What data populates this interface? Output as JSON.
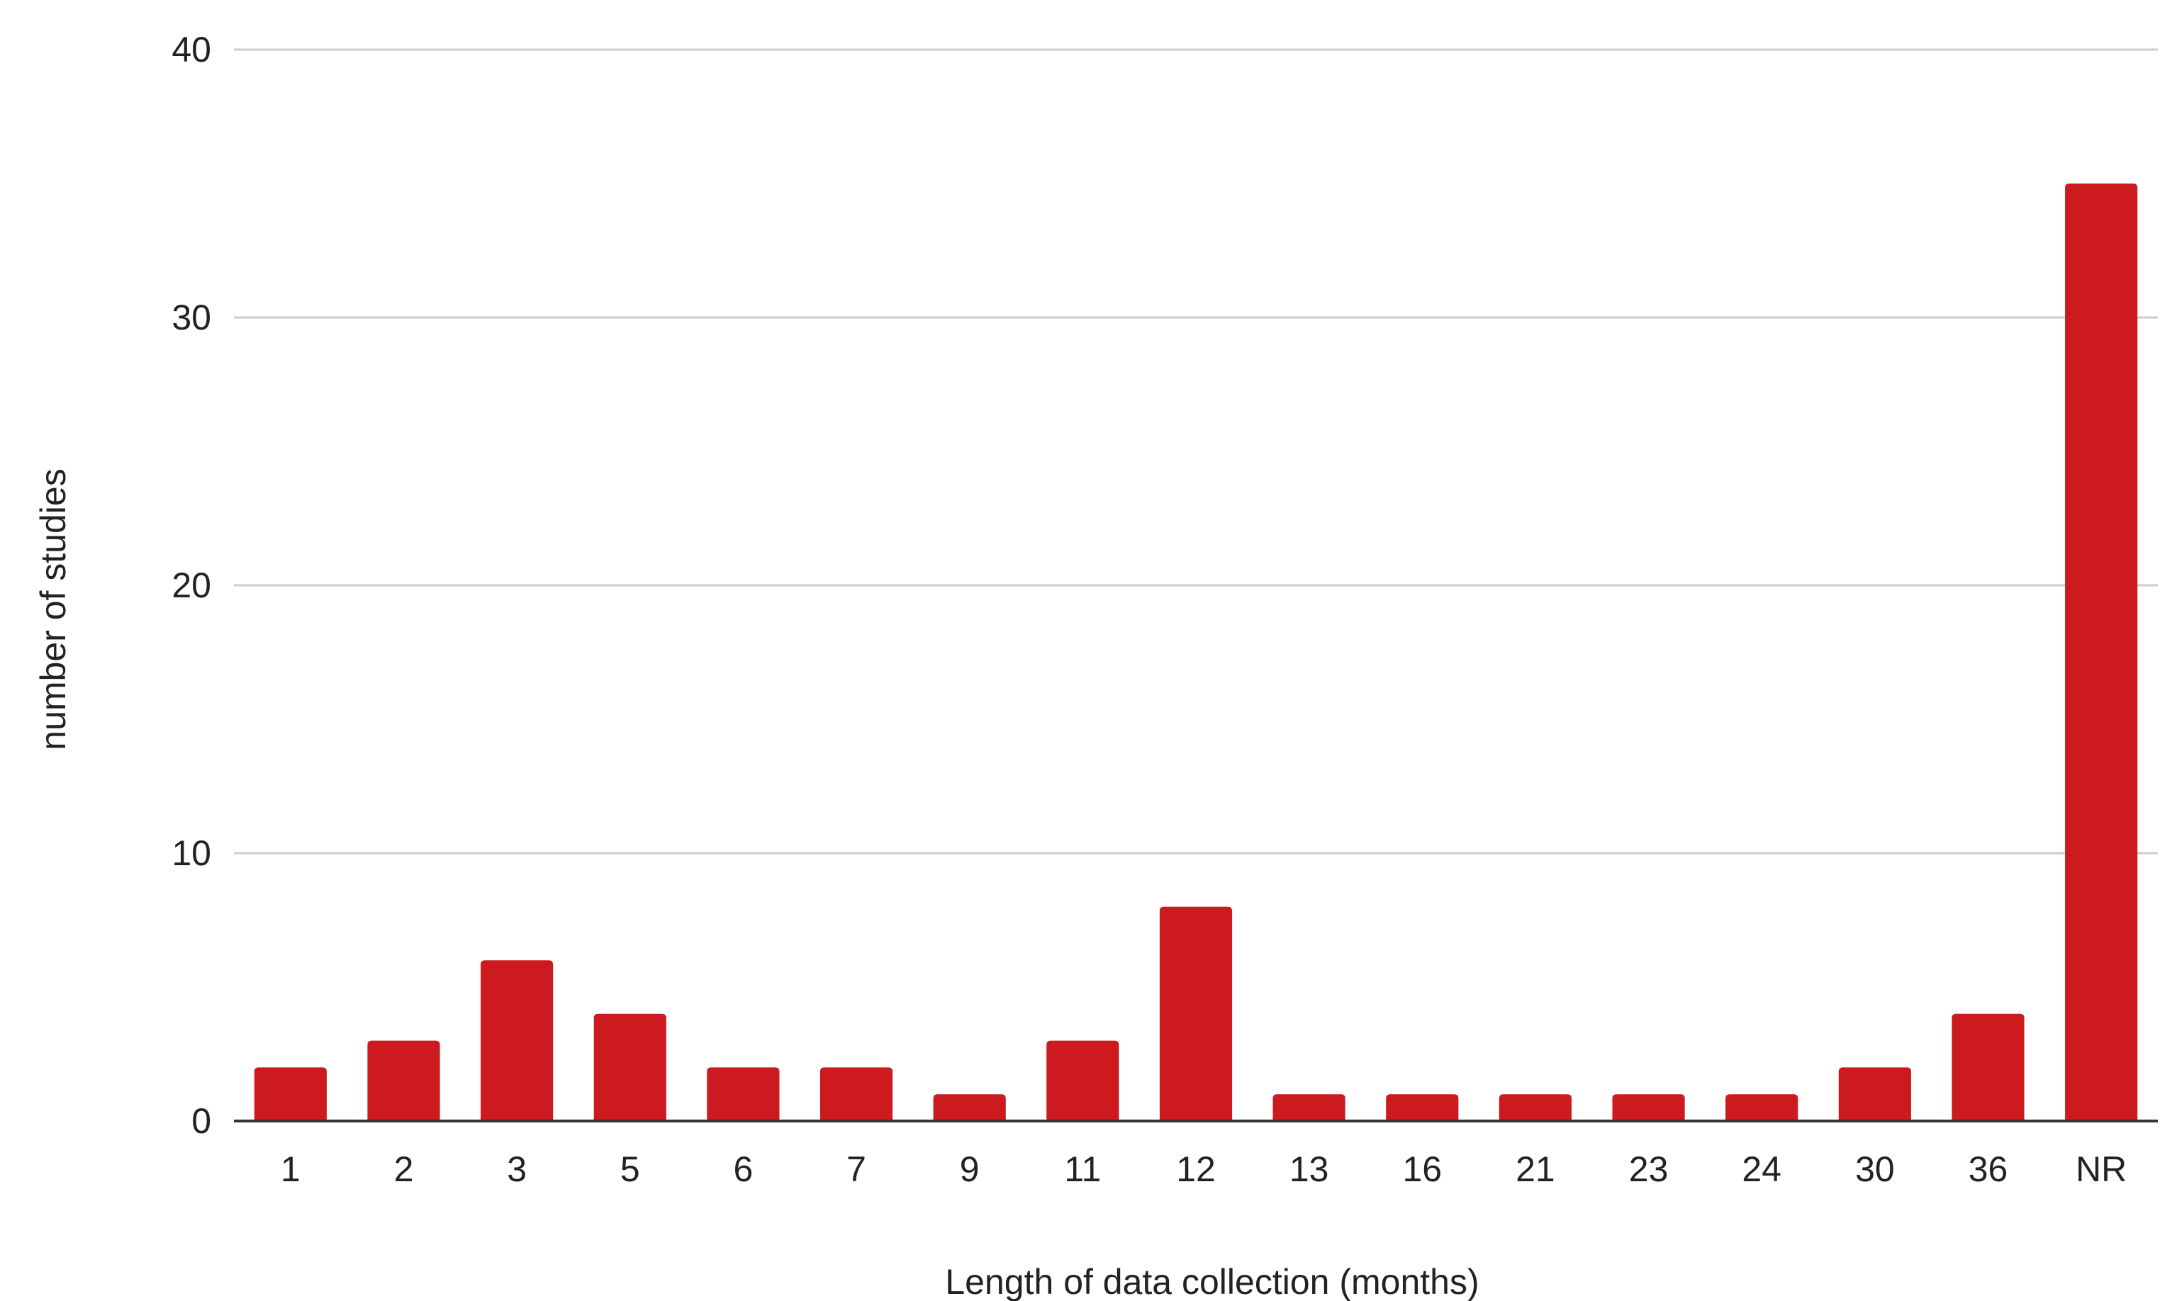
{
  "chart_data": {
    "type": "bar",
    "title": "",
    "xlabel": "Length of data collection (months)",
    "ylabel": "number of studies",
    "categories": [
      "1",
      "2",
      "3",
      "5",
      "6",
      "7",
      "9",
      "11",
      "12",
      "13",
      "16",
      "21",
      "23",
      "24",
      "30",
      "36",
      "NR"
    ],
    "values": [
      2,
      3,
      6,
      4,
      2,
      2,
      1,
      3,
      8,
      1,
      1,
      1,
      1,
      1,
      2,
      4,
      35
    ],
    "ylim": [
      0,
      40
    ],
    "yticks": [
      0,
      10,
      20,
      30,
      40
    ],
    "grid": true,
    "legend": "none",
    "bar_color": "#cc1a1f"
  }
}
